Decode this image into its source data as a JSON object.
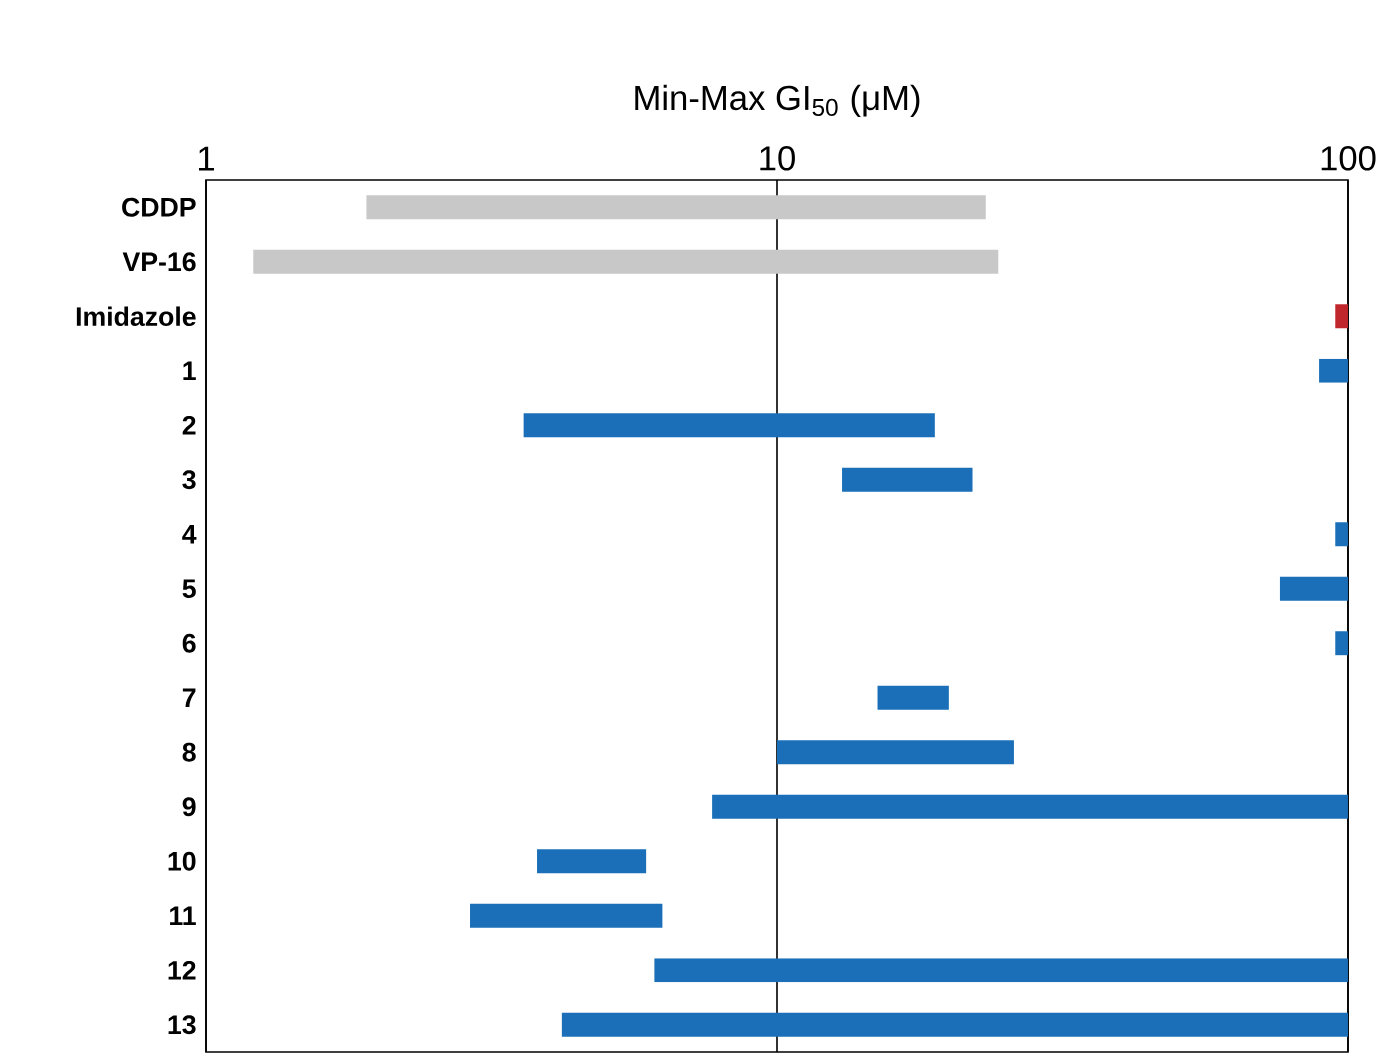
{
  "chart_data": {
    "type": "bar",
    "orientation": "horizontal",
    "log": "x",
    "grid": "x",
    "xlabel": "Min-Max GI$_{50}$ (μM)",
    "categories": [
      "CDDP",
      "VP-16",
      "Imidazole",
      "1",
      "2",
      "3",
      "4",
      "5",
      "6",
      "7",
      "8",
      "9",
      "10",
      "11",
      "12",
      "13"
    ],
    "base": [
      1.91,
      1.21,
      95,
      89,
      3.6,
      13,
      95,
      76,
      95,
      15,
      10,
      7.7,
      3.8,
      2.9,
      6.1,
      4.2
    ],
    "values": [
      21.3,
      23.2,
      5,
      11,
      15.3,
      9,
      5,
      24,
      5,
      5,
      16,
      92.3,
      2.1,
      3.4,
      93.9,
      95.8
    ],
    "colors": [
      "#c8c8c8",
      "#c8c8c8",
      "#c0272d",
      "#1a6fb8",
      "#1a6fb8",
      "#1a6fb8",
      "#1a6fb8",
      "#1a6fb8",
      "#1a6fb8",
      "#1a6fb8",
      "#1a6fb8",
      "#1a6fb8",
      "#1a6fb8",
      "#1a6fb8",
      "#1a6fb8",
      "#1a6fb8"
    ],
    "xlim": [
      1,
      100
    ],
    "xticks": [
      1,
      10,
      100
    ]
  }
}
